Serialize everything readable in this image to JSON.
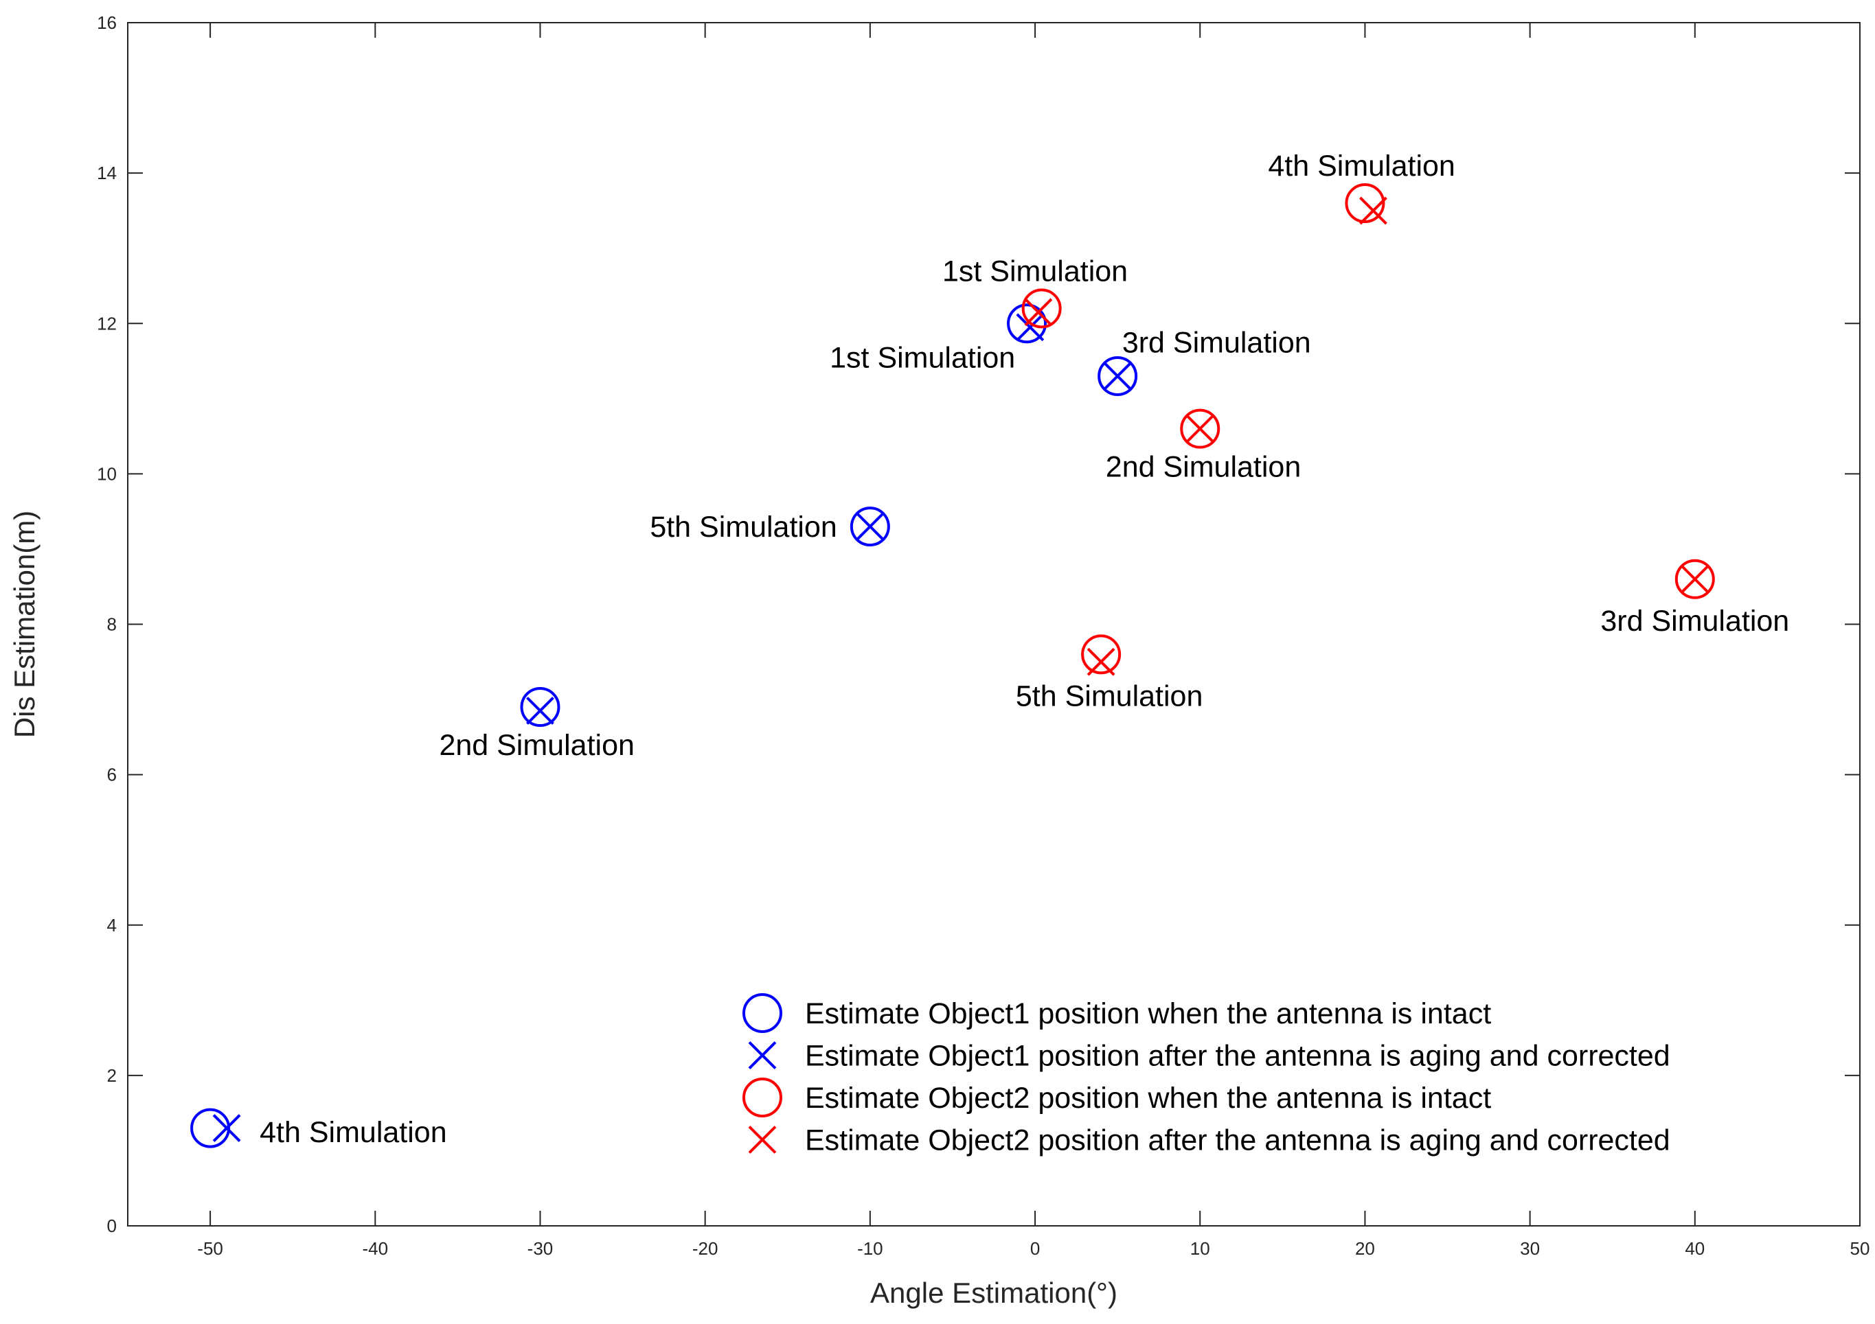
{
  "chart_data": {
    "type": "scatter",
    "title": "",
    "xlabel": "Angle Estimation(°)",
    "ylabel": "Dis Estimation(m)",
    "xlim": [
      -55,
      50
    ],
    "ylim": [
      0,
      16
    ],
    "xticks": [
      -50,
      -40,
      -30,
      -20,
      -10,
      0,
      10,
      20,
      30,
      40,
      50
    ],
    "yticks": [
      0,
      2,
      4,
      6,
      8,
      10,
      12,
      14,
      16
    ],
    "grid": false,
    "legend_position": "bottom-right",
    "colors": {
      "object1": "#0000ff",
      "object2": "#ff0000",
      "axis": "#262626"
    },
    "series": [
      {
        "name": "Estimate Object1 position when the antenna is intact",
        "marker": "circle",
        "color": "#0000ff",
        "points": [
          [
            -0.5,
            12.0
          ],
          [
            -30,
            6.9
          ],
          [
            5,
            11.3
          ],
          [
            -50,
            1.3
          ],
          [
            -10,
            9.3
          ]
        ]
      },
      {
        "name": "Estimate Object1 position after the antenna is aging and corrected",
        "marker": "x",
        "color": "#0000ff",
        "points": [
          [
            -0.3,
            11.95
          ],
          [
            -30,
            6.85
          ],
          [
            5,
            11.3
          ],
          [
            -49,
            1.3
          ],
          [
            -10,
            9.3
          ]
        ]
      },
      {
        "name": "Estimate Object2 position when the antenna is intact",
        "marker": "circle",
        "color": "#ff0000",
        "points": [
          [
            0.4,
            12.2
          ],
          [
            10,
            10.6
          ],
          [
            40,
            8.6
          ],
          [
            20,
            13.6
          ],
          [
            4,
            7.6
          ]
        ]
      },
      {
        "name": "Estimate Object2 position after the antenna is aging and corrected",
        "marker": "x",
        "color": "#ff0000",
        "points": [
          [
            0.2,
            12.15
          ],
          [
            10,
            10.6
          ],
          [
            40,
            8.6
          ],
          [
            20.5,
            13.5
          ],
          [
            4,
            7.5
          ]
        ]
      }
    ],
    "annotations": [
      {
        "text": "1st Simulation",
        "x": 0,
        "y": 12.7,
        "anchor": "middle",
        "color": "#000000"
      },
      {
        "text": "1st Simulation",
        "x": -1.2,
        "y": 11.55,
        "anchor": "end",
        "color": "#000000"
      },
      {
        "text": "3rd Simulation",
        "x": 11,
        "y": 11.75,
        "anchor": "middle",
        "color": "#000000"
      },
      {
        "text": "4th Simulation",
        "x": 19.8,
        "y": 14.1,
        "anchor": "middle",
        "color": "#000000"
      },
      {
        "text": "2nd Simulation",
        "x": 10.2,
        "y": 10.1,
        "anchor": "middle",
        "color": "#000000"
      },
      {
        "text": "5th Simulation",
        "x": -12,
        "y": 9.3,
        "anchor": "end",
        "color": "#000000"
      },
      {
        "text": "3rd Simulation",
        "x": 40,
        "y": 8.05,
        "anchor": "middle",
        "color": "#000000"
      },
      {
        "text": "5th Simulation",
        "x": 4.5,
        "y": 7.05,
        "anchor": "middle",
        "color": "#000000"
      },
      {
        "text": "2nd Simulation",
        "x": -30.2,
        "y": 6.4,
        "anchor": "middle",
        "color": "#000000"
      },
      {
        "text": "4th Simulation",
        "x": -47,
        "y": 1.25,
        "anchor": "start",
        "color": "#000000"
      }
    ]
  }
}
